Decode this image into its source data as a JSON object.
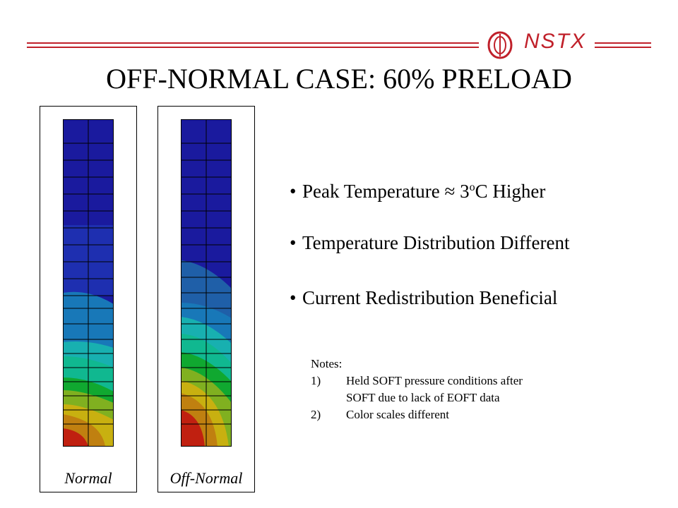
{
  "header": {
    "logo": {
      "text": "NSTX",
      "icon": "nstx-torus-logo",
      "color": "#c0202a"
    }
  },
  "title": "OFF-NORMAL CASE: 60% PRELOAD",
  "panels": [
    {
      "label": "Normal"
    },
    {
      "label": "Off-Normal"
    }
  ],
  "bullets": {
    "b1_prefix": "Peak Temperature ≈ 3",
    "b1_sup": "o",
    "b1_suffix": "C Higher",
    "b2": "Temperature Distribution Different",
    "b3": "Current Redistribution Beneficial"
  },
  "notes": {
    "heading": "Notes:",
    "n1_num": "1)",
    "n1_line1": "Held SOFT pressure conditions after",
    "n1_line2": "SOFT due to lack of EOFT data",
    "n2_num": "2)",
    "n2_text": "Color scales different"
  },
  "colors": {
    "accent": "#c0202a",
    "contour": [
      "#1a1a9e",
      "#1e2fb0",
      "#1f5fa8",
      "#1878b8",
      "#18b0b0",
      "#10b890",
      "#10a830",
      "#80b020",
      "#c8b010",
      "#c08010",
      "#c02010"
    ]
  }
}
